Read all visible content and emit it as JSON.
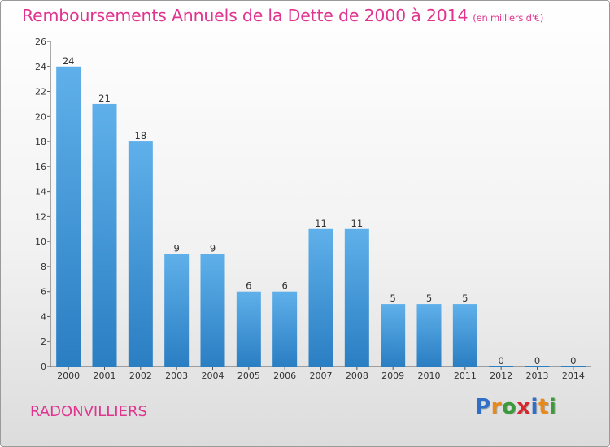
{
  "header": {
    "title": "Remboursements Annuels de la Dette de 2000 à 2014",
    "subtitle": "(en milliers d'€)"
  },
  "footer": {
    "city": "RADONVILLIERS",
    "logo": {
      "letters": [
        "P",
        "r",
        "o",
        "x",
        "i",
        "t",
        "i"
      ],
      "colors": [
        "#2f6fc9",
        "#e88a1a",
        "#3b9a3b",
        "#d8262e",
        "#2f6fc9",
        "#e88a1a",
        "#3b9a3b"
      ]
    }
  },
  "chart_data": {
    "type": "bar",
    "categories": [
      "2000",
      "2001",
      "2002",
      "2003",
      "2004",
      "2005",
      "2006",
      "2007",
      "2008",
      "2009",
      "2010",
      "2011",
      "2012",
      "2013",
      "2014"
    ],
    "values": [
      24,
      21,
      18,
      9,
      9,
      6,
      6,
      11,
      11,
      5,
      5,
      5,
      0,
      0,
      0
    ],
    "ylim": [
      0,
      26
    ],
    "yticks": [
      0,
      2,
      4,
      6,
      8,
      10,
      12,
      14,
      16,
      18,
      20,
      22,
      24,
      26
    ],
    "bar_color_top": "#5fb0ea",
    "bar_color_bottom": "#2a7ec2",
    "data_labels": true
  }
}
